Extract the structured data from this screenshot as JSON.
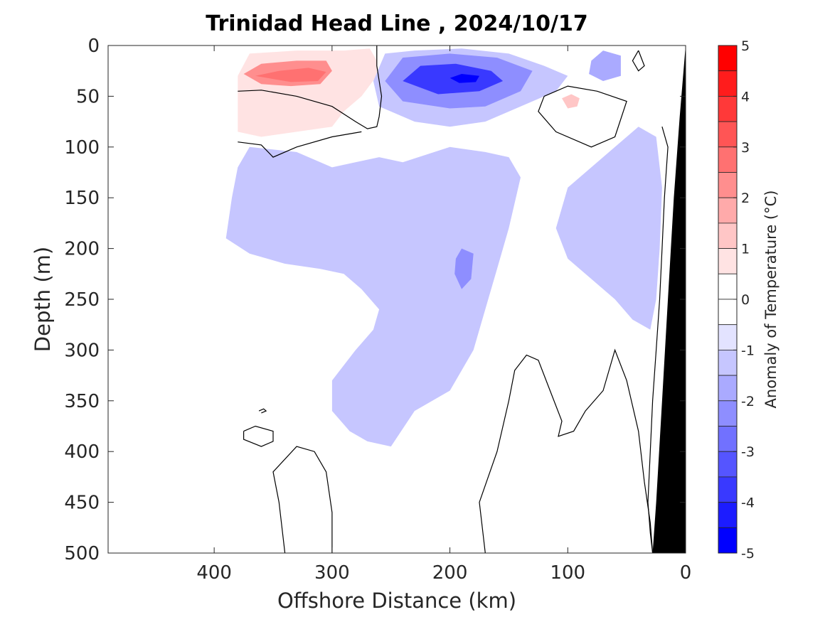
{
  "chart_data": {
    "type": "heatmap",
    "title": "Trinidad Head Line , 2024/10/17",
    "xlabel": "Offshore Distance (km)",
    "ylabel": "Depth (m)",
    "x_axis": {
      "range": [
        490,
        0
      ],
      "reversed": true,
      "ticks": [
        400,
        300,
        200,
        100,
        0
      ]
    },
    "y_axis": {
      "range": [
        0,
        500
      ],
      "reversed": true,
      "ticks": [
        0,
        50,
        100,
        150,
        200,
        250,
        300,
        350,
        400,
        450,
        500
      ]
    },
    "colorbar": {
      "label": "Anomaly of Temperature (°C)",
      "range": [
        -5,
        5
      ],
      "ticks": [
        5,
        4,
        3,
        2,
        1,
        0,
        -1,
        -2,
        -3,
        -4,
        -5
      ],
      "levels": [
        {
          "range": [
            4.5,
            5
          ],
          "color": "#ff0000"
        },
        {
          "range": [
            4,
            4.5
          ],
          "color": "#ff1c1c"
        },
        {
          "range": [
            3.5,
            4
          ],
          "color": "#ff3939"
        },
        {
          "range": [
            3,
            3.5
          ],
          "color": "#ff5555"
        },
        {
          "range": [
            2.5,
            3
          ],
          "color": "#ff7171"
        },
        {
          "range": [
            2,
            2.5
          ],
          "color": "#ff8e8e"
        },
        {
          "range": [
            1.5,
            2
          ],
          "color": "#ffaaaa"
        },
        {
          "range": [
            1,
            1.5
          ],
          "color": "#ffc6c6"
        },
        {
          "range": [
            0.5,
            1
          ],
          "color": "#ffe3e3"
        },
        {
          "range": [
            0,
            0.5
          ],
          "color": "#ffffff"
        },
        {
          "range": [
            -0.5,
            0
          ],
          "color": "#ffffff"
        },
        {
          "range": [
            -1,
            -0.5
          ],
          "color": "#e3e3ff"
        },
        {
          "range": [
            -1.5,
            -1
          ],
          "color": "#c6c6ff"
        },
        {
          "range": [
            -2,
            -1.5
          ],
          "color": "#aaaaff"
        },
        {
          "range": [
            -2.5,
            -2
          ],
          "color": "#8e8eff"
        },
        {
          "range": [
            -3,
            -2.5
          ],
          "color": "#7171ff"
        },
        {
          "range": [
            -3.5,
            -3
          ],
          "color": "#5555ff"
        },
        {
          "range": [
            -4,
            -3.5
          ],
          "color": "#3939ff"
        },
        {
          "range": [
            -4.5,
            -4
          ],
          "color": "#1c1cff"
        },
        {
          "range": [
            -5,
            -4.5
          ],
          "color": "#0000ff"
        }
      ]
    },
    "regions": [
      {
        "name": "warm-near-surface",
        "anomaly": 1,
        "points": [
          [
            380,
            30
          ],
          [
            370,
            8
          ],
          [
            330,
            5
          ],
          [
            290,
            5
          ],
          [
            268,
            3
          ],
          [
            262,
            15
          ],
          [
            262,
            30
          ],
          [
            275,
            50
          ],
          [
            290,
            65
          ],
          [
            300,
            80
          ],
          [
            330,
            85
          ],
          [
            360,
            90
          ],
          [
            380,
            85
          ]
        ]
      },
      {
        "name": "warm-core",
        "anomaly": 2.5,
        "points": [
          [
            375,
            28
          ],
          [
            360,
            18
          ],
          [
            330,
            15
          ],
          [
            305,
            15
          ],
          [
            300,
            25
          ],
          [
            310,
            38
          ],
          [
            335,
            40
          ],
          [
            360,
            38
          ]
        ]
      },
      {
        "name": "warm-core-inner",
        "anomaly": 3,
        "points": [
          [
            365,
            30
          ],
          [
            345,
            25
          ],
          [
            320,
            22
          ],
          [
            305,
            26
          ],
          [
            312,
            35
          ],
          [
            335,
            36
          ]
        ]
      },
      {
        "name": "warm-spot-100km",
        "anomaly": 1.5,
        "points": [
          [
            105,
            52
          ],
          [
            97,
            48
          ],
          [
            90,
            52
          ],
          [
            92,
            60
          ],
          [
            100,
            62
          ]
        ]
      },
      {
        "name": "cool-deep-tongue",
        "anomaly": -1,
        "points": [
          [
            380,
            120
          ],
          [
            370,
            100
          ],
          [
            330,
            105
          ],
          [
            300,
            120
          ],
          [
            260,
            110
          ],
          [
            240,
            115
          ],
          [
            200,
            100
          ],
          [
            170,
            105
          ],
          [
            150,
            110
          ],
          [
            140,
            130
          ],
          [
            150,
            180
          ],
          [
            160,
            220
          ],
          [
            170,
            260
          ],
          [
            180,
            300
          ],
          [
            200,
            340
          ],
          [
            230,
            360
          ],
          [
            250,
            395
          ],
          [
            270,
            390
          ],
          [
            285,
            380
          ],
          [
            300,
            360
          ],
          [
            300,
            330
          ],
          [
            280,
            300
          ],
          [
            265,
            280
          ],
          [
            260,
            260
          ],
          [
            275,
            240
          ],
          [
            290,
            225
          ],
          [
            310,
            220
          ],
          [
            340,
            215
          ],
          [
            370,
            205
          ],
          [
            390,
            190
          ],
          [
            385,
            150
          ]
        ]
      },
      {
        "name": "cool-east-slope",
        "anomaly": -1,
        "points": [
          [
            100,
            140
          ],
          [
            80,
            120
          ],
          [
            60,
            100
          ],
          [
            40,
            80
          ],
          [
            25,
            90
          ],
          [
            20,
            140
          ],
          [
            22,
            200
          ],
          [
            25,
            250
          ],
          [
            30,
            280
          ],
          [
            45,
            270
          ],
          [
            60,
            250
          ],
          [
            80,
            230
          ],
          [
            100,
            210
          ],
          [
            110,
            180
          ]
        ]
      },
      {
        "name": "cool-surface-blue",
        "anomaly": -1,
        "points": [
          [
            265,
            35
          ],
          [
            255,
            8
          ],
          [
            230,
            5
          ],
          [
            190,
            3
          ],
          [
            150,
            8
          ],
          [
            120,
            20
          ],
          [
            100,
            30
          ],
          [
            110,
            45
          ],
          [
            140,
            60
          ],
          [
            170,
            75
          ],
          [
            200,
            80
          ],
          [
            230,
            75
          ],
          [
            260,
            60
          ]
        ]
      },
      {
        "name": "cool-surface-mid",
        "anomaly": -2,
        "points": [
          [
            255,
            35
          ],
          [
            240,
            12
          ],
          [
            200,
            8
          ],
          [
            160,
            12
          ],
          [
            130,
            25
          ],
          [
            140,
            45
          ],
          [
            170,
            60
          ],
          [
            200,
            62
          ],
          [
            240,
            55
          ]
        ]
      },
      {
        "name": "cool-surface-core",
        "anomaly": -3.5,
        "points": [
          [
            240,
            35
          ],
          [
            225,
            20
          ],
          [
            195,
            18
          ],
          [
            165,
            25
          ],
          [
            155,
            35
          ],
          [
            175,
            45
          ],
          [
            210,
            48
          ]
        ]
      },
      {
        "name": "cool-surface-peak",
        "anomaly": -4.5,
        "points": [
          [
            200,
            32
          ],
          [
            190,
            28
          ],
          [
            175,
            30
          ],
          [
            178,
            36
          ],
          [
            192,
            37
          ]
        ]
      },
      {
        "name": "cool-patch-70km",
        "anomaly": -1.5,
        "points": [
          [
            80,
            15
          ],
          [
            70,
            5
          ],
          [
            55,
            10
          ],
          [
            55,
            30
          ],
          [
            70,
            35
          ],
          [
            82,
            28
          ]
        ]
      },
      {
        "name": "cool-patch-190km",
        "anomaly": -2,
        "points": [
          [
            195,
            210
          ],
          [
            190,
            200
          ],
          [
            180,
            205
          ],
          [
            182,
            230
          ],
          [
            190,
            240
          ],
          [
            196,
            225
          ]
        ]
      }
    ],
    "zero_contours": [
      {
        "name": "contour-surface-west",
        "points": [
          [
            380,
            45
          ],
          [
            360,
            44
          ],
          [
            330,
            50
          ],
          [
            300,
            60
          ],
          [
            280,
            75
          ],
          [
            270,
            82
          ],
          [
            262,
            80
          ],
          [
            260,
            70
          ],
          [
            258,
            50
          ],
          [
            262,
            20
          ],
          [
            262,
            0
          ]
        ]
      },
      {
        "name": "contour-surface-west-2",
        "points": [
          [
            380,
            95
          ],
          [
            360,
            98
          ],
          [
            350,
            110
          ],
          [
            330,
            100
          ],
          [
            300,
            90
          ],
          [
            275,
            85
          ]
        ]
      },
      {
        "name": "contour-loop-100km",
        "points": [
          [
            120,
            50
          ],
          [
            100,
            40
          ],
          [
            75,
            45
          ],
          [
            50,
            55
          ],
          [
            60,
            90
          ],
          [
            80,
            100
          ],
          [
            110,
            85
          ],
          [
            125,
            65
          ],
          [
            120,
            50
          ]
        ]
      },
      {
        "name": "contour-small-loop-40km",
        "points": [
          [
            40,
            5
          ],
          [
            35,
            20
          ],
          [
            40,
            25
          ],
          [
            45,
            15
          ],
          [
            40,
            5
          ]
        ]
      },
      {
        "name": "contour-deep-330km",
        "points": [
          [
            340,
            500
          ],
          [
            345,
            450
          ],
          [
            350,
            420
          ],
          [
            330,
            395
          ],
          [
            315,
            400
          ],
          [
            305,
            420
          ],
          [
            300,
            460
          ],
          [
            300,
            500
          ]
        ]
      },
      {
        "name": "contour-deep-tongue-150km",
        "points": [
          [
            170,
            500
          ],
          [
            175,
            450
          ],
          [
            160,
            400
          ],
          [
            150,
            350
          ],
          [
            145,
            320
          ],
          [
            135,
            305
          ],
          [
            125,
            310
          ],
          [
            115,
            340
          ],
          [
            105,
            370
          ],
          [
            108,
            385
          ],
          [
            95,
            380
          ],
          [
            85,
            360
          ],
          [
            70,
            340
          ],
          [
            60,
            300
          ],
          [
            50,
            330
          ],
          [
            40,
            380
          ],
          [
            35,
            430
          ],
          [
            30,
            470
          ],
          [
            28,
            500
          ]
        ]
      },
      {
        "name": "contour-small-loop-360km",
        "points": [
          [
            375,
            380
          ],
          [
            365,
            375
          ],
          [
            350,
            380
          ],
          [
            350,
            390
          ],
          [
            360,
            395
          ],
          [
            375,
            388
          ],
          [
            375,
            380
          ]
        ]
      },
      {
        "name": "contour-tiny-loop-360km",
        "points": [
          [
            362,
            360
          ],
          [
            358,
            358
          ],
          [
            356,
            360
          ],
          [
            360,
            362
          ]
        ]
      },
      {
        "name": "contour-slope-east",
        "points": [
          [
            20,
            80
          ],
          [
            15,
            100
          ],
          [
            18,
            150
          ],
          [
            20,
            200
          ],
          [
            22,
            250
          ],
          [
            25,
            300
          ],
          [
            28,
            350
          ],
          [
            30,
            400
          ],
          [
            32,
            450
          ],
          [
            30,
            480
          ],
          [
            28,
            500
          ]
        ]
      }
    ],
    "land": {
      "name": "shelf-slope-bathymetry",
      "color": "#000000",
      "points": [
        [
          0,
          0
        ],
        [
          0,
          500
        ],
        [
          28,
          500
        ],
        [
          25,
          450
        ],
        [
          20,
          350
        ],
        [
          15,
          250
        ],
        [
          10,
          150
        ],
        [
          5,
          70
        ]
      ]
    }
  }
}
